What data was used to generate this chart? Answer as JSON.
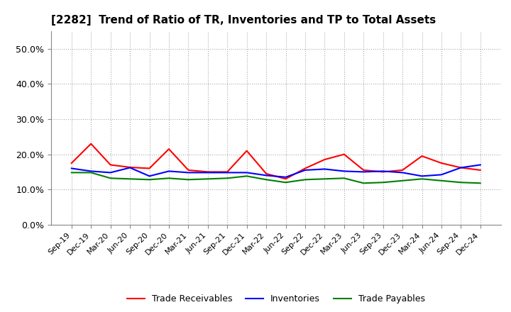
{
  "title": "[2282]  Trend of Ratio of TR, Inventories and TP to Total Assets",
  "x_labels": [
    "Sep-19",
    "Dec-19",
    "Mar-20",
    "Jun-20",
    "Sep-20",
    "Dec-20",
    "Mar-21",
    "Jun-21",
    "Sep-21",
    "Dec-21",
    "Mar-22",
    "Jun-22",
    "Sep-22",
    "Dec-22",
    "Mar-23",
    "Jun-23",
    "Sep-23",
    "Dec-23",
    "Mar-24",
    "Jun-24",
    "Sep-24",
    "Dec-24"
  ],
  "trade_receivables": [
    0.175,
    0.23,
    0.17,
    0.163,
    0.16,
    0.215,
    0.155,
    0.15,
    0.15,
    0.21,
    0.145,
    0.13,
    0.16,
    0.185,
    0.2,
    0.155,
    0.15,
    0.155,
    0.195,
    0.175,
    0.162,
    0.155
  ],
  "inventories": [
    0.16,
    0.152,
    0.148,
    0.162,
    0.138,
    0.152,
    0.148,
    0.148,
    0.148,
    0.148,
    0.14,
    0.135,
    0.155,
    0.158,
    0.152,
    0.15,
    0.152,
    0.148,
    0.138,
    0.142,
    0.162,
    0.17
  ],
  "trade_payables": [
    0.148,
    0.148,
    0.132,
    0.13,
    0.128,
    0.132,
    0.128,
    0.13,
    0.132,
    0.138,
    0.128,
    0.12,
    0.128,
    0.13,
    0.132,
    0.118,
    0.12,
    0.125,
    0.13,
    0.125,
    0.12,
    0.118
  ],
  "ylim": [
    0.0,
    0.55
  ],
  "yticks": [
    0.0,
    0.1,
    0.2,
    0.3,
    0.4,
    0.5
  ],
  "line_colors": {
    "trade_receivables": "#ff0000",
    "inventories": "#0000ff",
    "trade_payables": "#008000"
  },
  "line_width": 1.5,
  "background_color": "#ffffff",
  "grid_color": "#aaaaaa",
  "legend_labels": [
    "Trade Receivables",
    "Inventories",
    "Trade Payables"
  ],
  "title_fontsize": 11,
  "tick_fontsize": 8,
  "ytick_fontsize": 9
}
